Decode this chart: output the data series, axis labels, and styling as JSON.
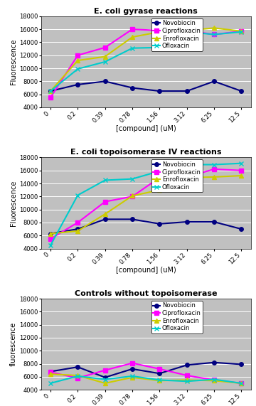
{
  "x_labels": [
    "0",
    "0.2",
    "0.39",
    "0.78",
    "1.56",
    "3.12",
    "6.25",
    "12.5"
  ],
  "x_vals": [
    0,
    1,
    2,
    3,
    4,
    5,
    6,
    7
  ],
  "chart1": {
    "title": "E. coli gyrase reactions",
    "novobiocin": [
      6500,
      7500,
      8000,
      7000,
      6500,
      6500,
      8000,
      6500
    ],
    "ciprofloxacin": [
      5500,
      12000,
      13200,
      16000,
      15800,
      15800,
      15200,
      15700
    ],
    "enrofloxacin": [
      6500,
      11200,
      11800,
      14800,
      15600,
      15800,
      16200,
      15700
    ],
    "ofloxacin": [
      6500,
      9900,
      11000,
      13100,
      13200,
      15600,
      15200,
      15600
    ]
  },
  "chart2": {
    "title": "E. coli topoisomerase IV reactions",
    "novobiocin": [
      6300,
      7000,
      8500,
      8500,
      7800,
      8100,
      8100,
      7000
    ],
    "ciprofloxacin": [
      5500,
      8000,
      11200,
      12000,
      14900,
      15000,
      16200,
      16000
    ],
    "enrofloxacin": [
      6300,
      6700,
      9300,
      12100,
      13000,
      14900,
      15000,
      15200
    ],
    "ofloxacin": [
      4500,
      12200,
      14500,
      14700,
      15900,
      16900,
      16900,
      17100
    ]
  },
  "chart3": {
    "title": "Controls without topoisomerase",
    "novobiocin": [
      6800,
      7500,
      5900,
      7200,
      6500,
      7800,
      8200,
      7900
    ],
    "ciprofloxacin": [
      6700,
      5800,
      7000,
      8100,
      7200,
      6200,
      5500,
      5000
    ],
    "enrofloxacin": [
      6400,
      6200,
      5000,
      5900,
      5400,
      5500,
      5400,
      5000
    ],
    "ofloxacin": [
      5000,
      6100,
      5600,
      6100,
      5500,
      5300,
      5600,
      5000
    ]
  },
  "colors": {
    "novobiocin": "#000080",
    "ciprofloxacin": "#FF00FF",
    "enrofloxacin": "#CCCC00",
    "ofloxacin": "#00CCCC"
  },
  "markers": {
    "novobiocin": "o",
    "ciprofloxacin": "s",
    "enrofloxacin": "^",
    "ofloxacin": "x"
  },
  "legend_labels": [
    "Novobiocin",
    "Ciprofloxacin",
    "Enrofloxacin",
    "Ofloxacin"
  ],
  "series_keys": [
    "novobiocin",
    "ciprofloxacin",
    "enrofloxacin",
    "ofloxacin"
  ],
  "ylabel1": "Fluorescence",
  "ylabel2": "Fluorescence",
  "ylabel3": "fluorescence",
  "xlabel": "[compound] (uM)",
  "ylim": [
    4000,
    18000
  ],
  "yticks": [
    4000,
    6000,
    8000,
    10000,
    12000,
    14000,
    16000,
    18000
  ],
  "bg_color": "#C0C0C0",
  "fig_bg": "#FFFFFF",
  "linewidth": 1.5,
  "markersize": 4
}
